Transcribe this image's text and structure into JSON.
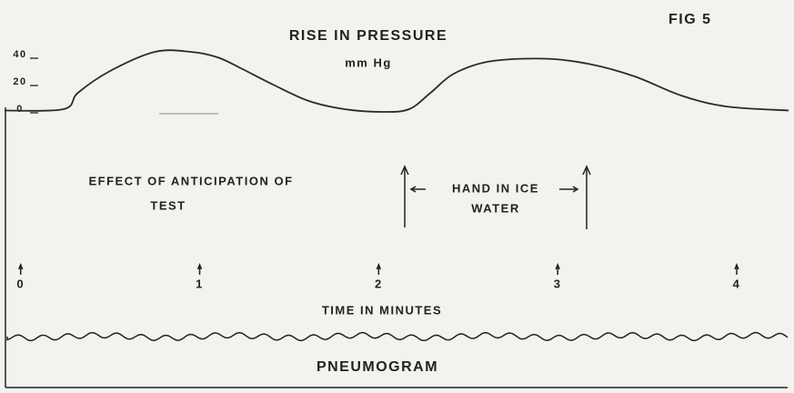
{
  "chart_data": {
    "type": "line",
    "figure_label": "FIG 5",
    "title": "RISE IN PRESSURE",
    "subtitle": "mm Hg",
    "xlabel": "TIME IN MINUTES",
    "annotations": [
      "EFFECT OF ANTICIPATION OF",
      "TEST",
      "HAND IN ICE",
      "WATER"
    ],
    "trace_label": "PNEUMOGRAM",
    "color": "#2a2a2a",
    "x": [
      -0.09,
      0.24,
      0.32,
      0.5,
      0.75,
      0.95,
      1.1,
      1.23,
      1.41,
      1.61,
      1.81,
      2.02,
      2.17,
      2.29,
      2.42,
      2.62,
      2.93,
      3.18,
      3.43,
      3.69,
      3.94,
      4.29
    ],
    "values": [
      -1,
      0,
      12,
      28,
      42,
      42,
      38,
      30,
      18,
      6,
      0,
      -2,
      0,
      12,
      26,
      35,
      37,
      33,
      24,
      10,
      2,
      -1
    ],
    "xlim": [
      -0.09,
      4.31
    ],
    "xticks": [
      0,
      1,
      2,
      3,
      4
    ],
    "ylim": [
      -10,
      45
    ],
    "yticks": [
      0,
      20,
      40
    ]
  }
}
